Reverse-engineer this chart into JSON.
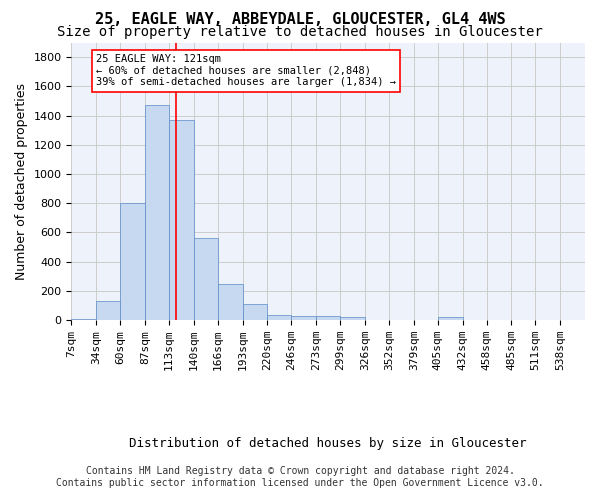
{
  "title1": "25, EAGLE WAY, ABBEYDALE, GLOUCESTER, GL4 4WS",
  "title2": "Size of property relative to detached houses in Gloucester",
  "xlabel": "Distribution of detached houses by size in Gloucester",
  "ylabel": "Number of detached properties",
  "bin_labels": [
    "7sqm",
    "34sqm",
    "60sqm",
    "87sqm",
    "113sqm",
    "140sqm",
    "166sqm",
    "193sqm",
    "220sqm",
    "246sqm",
    "273sqm",
    "299sqm",
    "326sqm",
    "352sqm",
    "379sqm",
    "405sqm",
    "432sqm",
    "458sqm",
    "485sqm",
    "511sqm",
    "538sqm"
  ],
  "bin_edges": [
    7,
    34,
    60,
    87,
    113,
    140,
    166,
    193,
    220,
    246,
    273,
    299,
    326,
    352,
    379,
    405,
    432,
    458,
    485,
    511,
    538
  ],
  "bar_heights": [
    10,
    130,
    800,
    1470,
    1370,
    560,
    250,
    110,
    35,
    30,
    30,
    20,
    0,
    0,
    0,
    20,
    0,
    0,
    0,
    0
  ],
  "bar_color": "#c6d9f0",
  "bar_edgecolor": "#5a8ac6",
  "grid_color": "#cccccc",
  "background_color": "#eef3fb",
  "vline_x": 121,
  "vline_color": "red",
  "annotation_text": "25 EAGLE WAY: 121sqm\n← 60% of detached houses are smaller (2,848)\n39% of semi-detached houses are larger (1,834) →",
  "annotation_box_color": "white",
  "annotation_box_edgecolor": "red",
  "ylim": [
    0,
    1900
  ],
  "yticks": [
    0,
    200,
    400,
    600,
    800,
    1000,
    1200,
    1400,
    1600,
    1800
  ],
  "footer1": "Contains HM Land Registry data © Crown copyright and database right 2024.",
  "footer2": "Contains public sector information licensed under the Open Government Licence v3.0.",
  "title1_fontsize": 11,
  "title2_fontsize": 10,
  "xlabel_fontsize": 9,
  "ylabel_fontsize": 9,
  "tick_fontsize": 8,
  "footer_fontsize": 7
}
